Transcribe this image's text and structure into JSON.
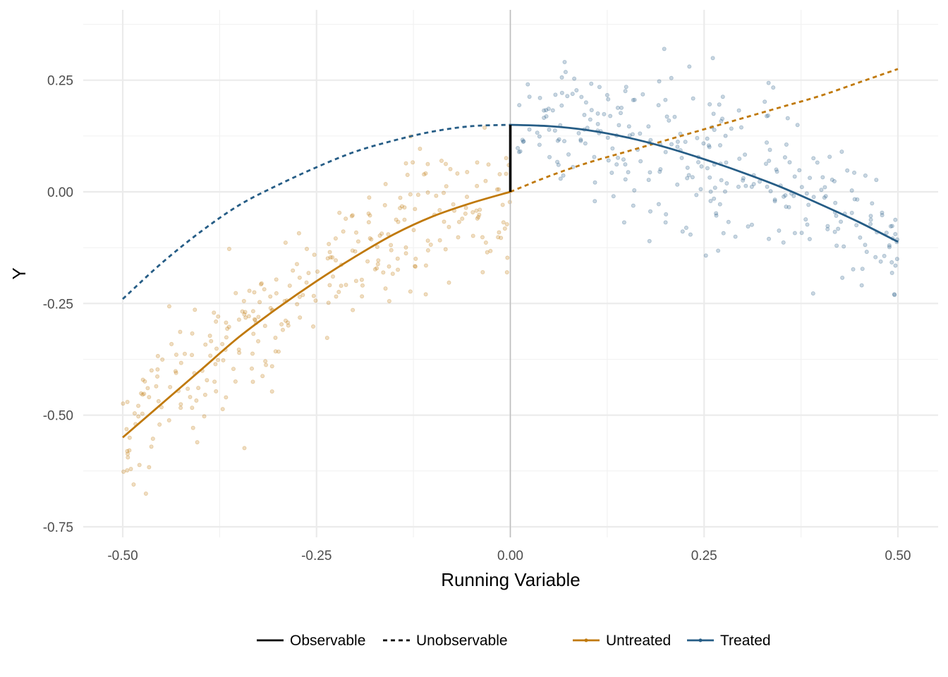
{
  "chart_data": {
    "type": "scatter",
    "title": "",
    "xlabel": "Running Variable",
    "ylabel": "Y",
    "xlim": [
      -0.5,
      0.5
    ],
    "ylim": [
      -0.75,
      0.35
    ],
    "x_ticks": [
      -0.5,
      -0.25,
      0.0,
      0.25,
      0.5
    ],
    "x_tick_labels": [
      "-0.50",
      "-0.25",
      "0.00",
      "0.25",
      "0.50"
    ],
    "y_ticks": [
      -0.75,
      -0.5,
      -0.25,
      0.0,
      0.25
    ],
    "y_tick_labels": [
      "-0.75",
      "-0.50",
      "-0.25",
      "0.00",
      "0.25"
    ],
    "grid": true,
    "cutoff": 0.0,
    "legend_position": "bottom",
    "colors": {
      "untreated": "#c0790a",
      "treated": "#265d86",
      "observable": "#000000",
      "cutoff_line": "#bdbdbd"
    },
    "legend": {
      "linetype": [
        {
          "label": "Observable",
          "dash": "solid"
        },
        {
          "label": "Unobservable",
          "dash": "dashed"
        }
      ],
      "group": [
        {
          "label": "Untreated",
          "color": "#c0790a"
        },
        {
          "label": "Treated",
          "color": "#265d86"
        }
      ]
    },
    "series": [
      {
        "name": "Untreated",
        "role": "fit-observable",
        "dash": "solid",
        "color": "#c0790a",
        "x": [
          -0.5,
          -0.45,
          -0.4,
          -0.35,
          -0.3,
          -0.25,
          -0.2,
          -0.15,
          -0.1,
          -0.05,
          0.0
        ],
        "y": [
          -0.55,
          -0.475,
          -0.4,
          -0.325,
          -0.26,
          -0.2,
          -0.145,
          -0.095,
          -0.055,
          -0.025,
          0.0
        ]
      },
      {
        "name": "Untreated",
        "role": "fit-unobservable",
        "dash": "dashed",
        "color": "#c0790a",
        "x": [
          0.0,
          0.05,
          0.1,
          0.15,
          0.2,
          0.25,
          0.3,
          0.35,
          0.4,
          0.45,
          0.5
        ],
        "y": [
          0.0,
          0.035,
          0.065,
          0.09,
          0.115,
          0.14,
          0.165,
          0.19,
          0.215,
          0.245,
          0.275
        ]
      },
      {
        "name": "Treated",
        "role": "fit-observable",
        "dash": "solid",
        "color": "#265d86",
        "x": [
          0.0,
          0.05,
          0.1,
          0.15,
          0.2,
          0.25,
          0.3,
          0.35,
          0.4,
          0.45,
          0.5
        ],
        "y": [
          0.15,
          0.147,
          0.138,
          0.122,
          0.1,
          0.073,
          0.043,
          0.01,
          -0.028,
          -0.068,
          -0.112
        ]
      },
      {
        "name": "Treated",
        "role": "fit-unobservable",
        "dash": "dashed",
        "color": "#265d86",
        "x": [
          -0.5,
          -0.45,
          -0.4,
          -0.35,
          -0.3,
          -0.25,
          -0.2,
          -0.15,
          -0.1,
          -0.05,
          0.0
        ],
        "y": [
          -0.24,
          -0.16,
          -0.09,
          -0.03,
          0.015,
          0.055,
          0.09,
          0.115,
          0.135,
          0.147,
          0.15
        ]
      }
    ],
    "gap_segment": {
      "x": 0.0,
      "y_from": 0.0,
      "y_to": 0.15
    },
    "scatter": {
      "untreated_noise_sd": 0.08,
      "treated_noise_sd": 0.085,
      "untreated_points": 300,
      "treated_points": 300,
      "opacity": 0.25
    }
  }
}
